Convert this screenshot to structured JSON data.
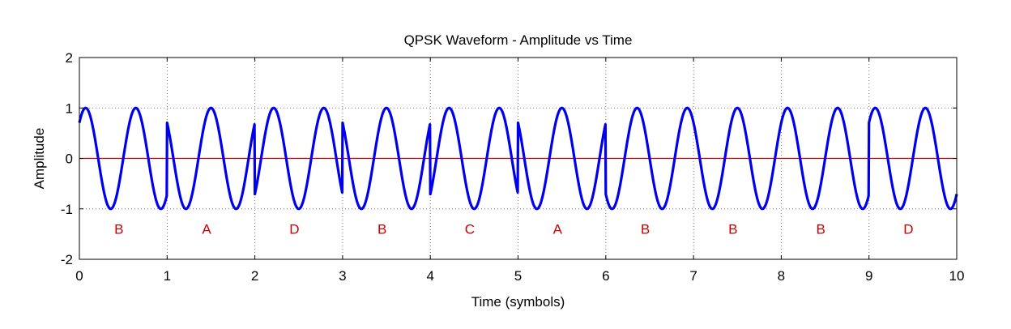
{
  "chart_data": {
    "type": "line",
    "title": "QPSK Waveform - Amplitude vs Time",
    "xlabel": "Time (symbols)",
    "ylabel": "Amplitude",
    "xlim": [
      0,
      10
    ],
    "ylim": [
      -2,
      2
    ],
    "xticks": [
      "0",
      "1",
      "2",
      "3",
      "4",
      "5",
      "6",
      "7",
      "8",
      "9",
      "10"
    ],
    "yticks": [
      "2",
      "1",
      "0",
      "-1",
      "-2"
    ],
    "grid": true,
    "reference_line": {
      "y": 0,
      "color": "#cc0000"
    },
    "series": [
      {
        "color": "#0000ee",
        "cycles_per_symbol": 1.75,
        "symbol_phases_deg": [
          45,
          225,
          135,
          45,
          315,
          225,
          45,
          45,
          45,
          135
        ]
      }
    ],
    "annotations": {
      "y": -1.4,
      "color": "#cc0000",
      "labels": [
        {
          "x": 0.45,
          "text": "B"
        },
        {
          "x": 1.45,
          "text": "A"
        },
        {
          "x": 2.45,
          "text": "D"
        },
        {
          "x": 3.45,
          "text": "B"
        },
        {
          "x": 4.45,
          "text": "C"
        },
        {
          "x": 5.45,
          "text": "A"
        },
        {
          "x": 6.45,
          "text": "B"
        },
        {
          "x": 7.45,
          "text": "B"
        },
        {
          "x": 8.45,
          "text": "B"
        },
        {
          "x": 9.45,
          "text": "D"
        }
      ]
    }
  }
}
